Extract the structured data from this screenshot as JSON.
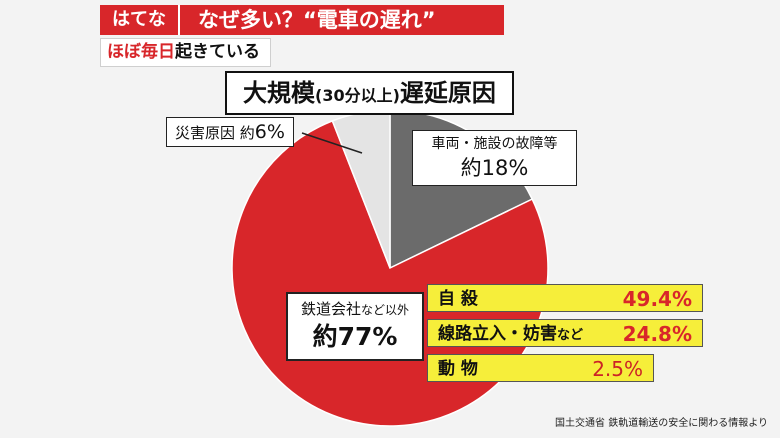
{
  "header": {
    "tag": "はてな",
    "headline": "なぜ多い？“電車の遅れ”",
    "subline_highlight": "ほぼ毎日",
    "subline_rest": "起きている"
  },
  "chart_data": {
    "type": "pie",
    "title_main": "大規模",
    "title_small": "(30分以上)",
    "title_tail": "遅延原因",
    "slices": [
      {
        "label": "車両・施設の故障等",
        "value_text": "約18%",
        "value": 18,
        "color": "#6b6b6b"
      },
      {
        "label": "鉄道会社など以外",
        "label_main": "鉄道会社",
        "label_small": "など以外",
        "value_text": "約77%",
        "value": 77,
        "color": "#d8262a"
      },
      {
        "label": "災害原因",
        "value_text": "約6%",
        "value_prefix": "災害原因 約",
        "value_pct": "6%",
        "value": 6,
        "color": "#e4e4e4"
      }
    ],
    "breakdown": [
      {
        "label": "自 殺",
        "value_text": "49.4%",
        "value": 49.4
      },
      {
        "label_main": "線路立入・妨害",
        "label_small": "など",
        "value_text": "24.8%",
        "value": 24.8
      },
      {
        "label": "動 物",
        "value_text": "2.5%",
        "value": 2.5
      }
    ]
  },
  "source": "国土交通省 鉄軌道輸送の安全に関わる情報より"
}
